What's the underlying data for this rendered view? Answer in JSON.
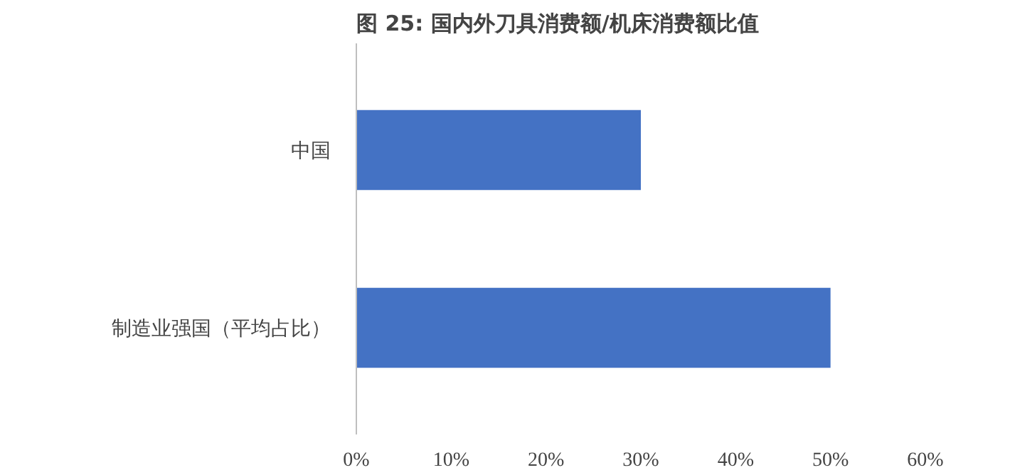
{
  "chart_data": {
    "type": "bar",
    "orientation": "horizontal",
    "title": "图 25: 国内外刀具消费额/机床消费额比值",
    "categories": [
      "中国",
      "制造业强国（平均占比）"
    ],
    "values": [
      30,
      50
    ],
    "color": "#4472c4",
    "xlim": [
      0,
      60
    ],
    "xticks": [
      {
        "value": 0,
        "label": "0%"
      },
      {
        "value": 10,
        "label": "10%"
      },
      {
        "value": 20,
        "label": "20%"
      },
      {
        "value": 30,
        "label": "30%"
      },
      {
        "value": 40,
        "label": "40%"
      },
      {
        "value": 50,
        "label": "50%"
      },
      {
        "value": 60,
        "label": "60%"
      }
    ],
    "grid": false
  }
}
